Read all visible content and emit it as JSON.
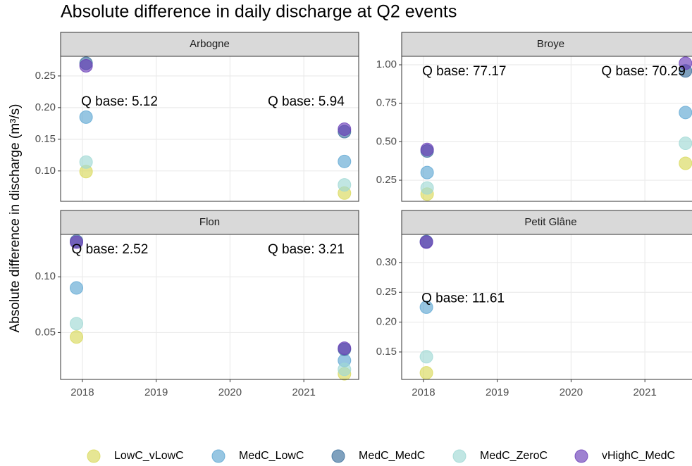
{
  "title": "Absolute difference in daily discharge at Q2 events",
  "y_label": "Absolute difference in discharge (m³/s)",
  "legend_position": "bottom",
  "chart_data": [
    {
      "type": "scatter",
      "title": "Arbogne",
      "x": [
        2018.05,
        2021.55
      ],
      "xlim": [
        2017.705,
        2021.743
      ],
      "xticks": [
        2018,
        2019,
        2020,
        2021
      ],
      "ylim": [
        0.052,
        0.281
      ],
      "yticks": [
        {
          "value": 0.1,
          "label": "0.10"
        },
        0.15,
        {
          "value": 0.2,
          "label": "0.20"
        },
        0.25
      ],
      "grid": true,
      "series": [
        {
          "name": "LowC_vLowC",
          "color": "#d9d95a",
          "values": [
            0.099,
            0.065
          ]
        },
        {
          "name": "MedC_LowC",
          "color": "#5fa8d3",
          "values": [
            0.185,
            0.115
          ]
        },
        {
          "name": "MedC_MedC",
          "color": "#3b6e9b",
          "values": [
            0.27,
            0.162
          ]
        },
        {
          "name": "MedC_ZeroC",
          "color": "#9fd8d4",
          "values": [
            0.114,
            0.078
          ]
        },
        {
          "name": "vHighC_MedC",
          "color": "#6a3db8",
          "values": [
            0.266,
            0.166
          ]
        }
      ],
      "annotations": [
        {
          "text": "Q base: 5.12",
          "x": 2018.05,
          "y": 0.209
        },
        {
          "text": "Q base: 5.94",
          "x": 2021.55,
          "y": 0.209
        }
      ]
    },
    {
      "type": "scatter",
      "title": "Broye",
      "x": [
        2018.05,
        2021.55
      ],
      "xlim": [
        2017.705,
        2021.743
      ],
      "xticks": [
        2018,
        2019,
        2020,
        2021
      ],
      "ylim": [
        0.113,
        1.055
      ],
      "yticks": [
        0.25,
        {
          "value": 0.5,
          "label": "0.50"
        },
        0.75,
        {
          "value": 1,
          "label": "1.00"
        }
      ],
      "grid": true,
      "series": [
        {
          "name": "LowC_vLowC",
          "color": "#d9d95a",
          "values": [
            0.16,
            0.36
          ]
        },
        {
          "name": "MedC_LowC",
          "color": "#5fa8d3",
          "values": [
            0.3,
            0.69
          ]
        },
        {
          "name": "MedC_MedC",
          "color": "#3b6e9b",
          "values": [
            0.44,
            0.96
          ]
        },
        {
          "name": "MedC_ZeroC",
          "color": "#9fd8d4",
          "values": [
            0.2,
            0.49
          ]
        },
        {
          "name": "vHighC_MedC",
          "color": "#6a3db8",
          "values": [
            0.45,
            1.01
          ]
        }
      ],
      "annotations": [
        {
          "text": "Q base: 77.17",
          "x": 2018.05,
          "y": 0.954
        },
        {
          "text": "Q base: 70.29",
          "x": 2021.55,
          "y": 0.954
        }
      ]
    },
    {
      "type": "scatter",
      "title": "Flon",
      "x": [
        2017.92,
        2021.55
      ],
      "xlim": [
        2017.705,
        2021.743
      ],
      "xticks": [
        2018,
        2019,
        2020,
        2021
      ],
      "ylim": [
        0.008,
        0.138
      ],
      "yticks": [
        0.05,
        {
          "value": 0.1,
          "label": "0.10"
        }
      ],
      "grid": true,
      "series": [
        {
          "name": "LowC_vLowC",
          "color": "#d9d95a",
          "values": [
            0.046,
            0.013
          ]
        },
        {
          "name": "MedC_LowC",
          "color": "#5fa8d3",
          "values": [
            0.09,
            0.025
          ]
        },
        {
          "name": "MedC_MedC",
          "color": "#3b6e9b",
          "values": [
            0.132,
            0.035
          ]
        },
        {
          "name": "MedC_ZeroC",
          "color": "#9fd8d4",
          "values": [
            0.058,
            0.017
          ]
        },
        {
          "name": "vHighC_MedC",
          "color": "#6a3db8",
          "values": [
            0.131,
            0.036
          ]
        }
      ],
      "annotations": [
        {
          "text": "Q base: 2.52",
          "x": 2017.92,
          "y": 0.124
        },
        {
          "text": "Q base: 3.21",
          "x": 2021.55,
          "y": 0.124
        }
      ]
    },
    {
      "type": "scatter",
      "title": "Petit Glâne",
      "x": [
        2018.04
      ],
      "xlim": [
        2017.705,
        2021.743
      ],
      "xticks": [
        2018,
        2019,
        2020,
        2021
      ],
      "ylim": [
        0.104,
        0.347
      ],
      "yticks": [
        0.15,
        {
          "value": 0.2,
          "label": "0.20"
        },
        0.25,
        {
          "value": 0.3,
          "label": "0.30"
        }
      ],
      "grid": true,
      "series": [
        {
          "name": "LowC_vLowC",
          "color": "#d9d95a",
          "values": [
            0.115
          ]
        },
        {
          "name": "MedC_LowC",
          "color": "#5fa8d3",
          "values": [
            0.225
          ]
        },
        {
          "name": "MedC_MedC",
          "color": "#3b6e9b",
          "values": [
            0.335
          ]
        },
        {
          "name": "MedC_ZeroC",
          "color": "#9fd8d4",
          "values": [
            0.142
          ]
        },
        {
          "name": "vHighC_MedC",
          "color": "#6a3db8",
          "values": [
            0.334
          ]
        }
      ],
      "annotations": [
        {
          "text": "Q base: 11.61",
          "x": 2018.04,
          "y": 0.239
        }
      ]
    }
  ]
}
